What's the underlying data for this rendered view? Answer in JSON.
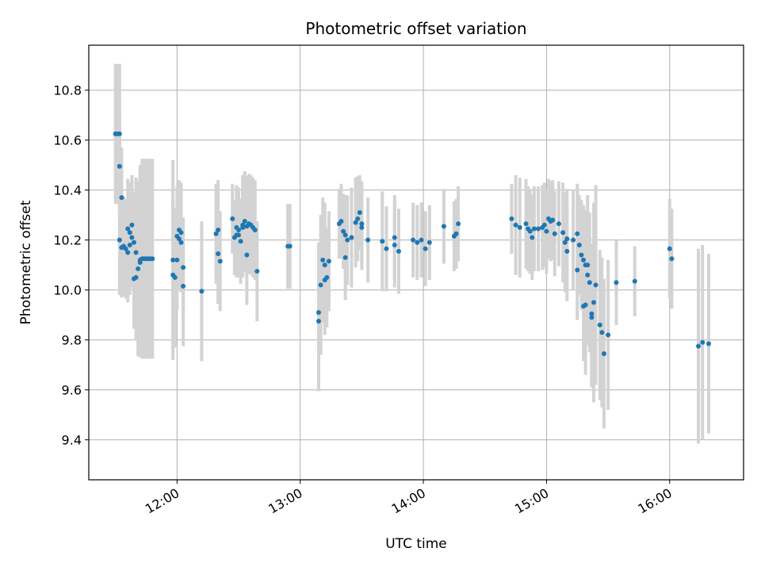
{
  "chart_data": {
    "type": "scatter",
    "title": "Photometric offset variation",
    "xlabel": "UTC time",
    "ylabel": "Photometric offset",
    "xlim": [
      "11:17",
      "16:36"
    ],
    "ylim": [
      9.24,
      10.98
    ],
    "xticks": [
      "12:00",
      "13:00",
      "14:00",
      "15:00",
      "16:00"
    ],
    "yticks": [
      9.4,
      9.6,
      9.8,
      10.0,
      10.2,
      10.4,
      10.6,
      10.8
    ],
    "grid": true,
    "colors": {
      "marker": "#1f77b4",
      "errorbar": "#d3d3d3",
      "grid": "#b0b0b0"
    },
    "points": [
      {
        "t": "11:30",
        "y": 10.625,
        "err": 0.28
      },
      {
        "t": "11:31",
        "y": 10.625,
        "err": 0.28
      },
      {
        "t": "11:32",
        "y": 10.625,
        "err": 0.28
      },
      {
        "t": "11:32",
        "y": 10.495,
        "err": 0.2
      },
      {
        "t": "11:33",
        "y": 10.37,
        "err": 0.2
      },
      {
        "t": "11:32",
        "y": 10.2,
        "err": 0.22
      },
      {
        "t": "11:33",
        "y": 10.17,
        "err": 0.2
      },
      {
        "t": "11:34",
        "y": 10.175,
        "err": 0.2
      },
      {
        "t": "11:35",
        "y": 10.165,
        "err": 0.2
      },
      {
        "t": "11:36",
        "y": 10.15,
        "err": 0.2
      },
      {
        "t": "11:36",
        "y": 10.245,
        "err": 0.2
      },
      {
        "t": "11:37",
        "y": 10.18,
        "err": 0.2
      },
      {
        "t": "11:37",
        "y": 10.23,
        "err": 0.2
      },
      {
        "t": "11:38",
        "y": 10.26,
        "err": 0.2
      },
      {
        "t": "11:38",
        "y": 10.21,
        "err": 0.2
      },
      {
        "t": "11:39",
        "y": 10.19,
        "err": 0.2
      },
      {
        "t": "11:39",
        "y": 10.045,
        "err": 0.2
      },
      {
        "t": "11:40",
        "y": 10.05,
        "err": 0.25
      },
      {
        "t": "11:40",
        "y": 10.15,
        "err": 0.3
      },
      {
        "t": "11:41",
        "y": 10.085,
        "err": 0.35
      },
      {
        "t": "11:42",
        "y": 10.11,
        "err": 0.38
      },
      {
        "t": "11:42",
        "y": 10.12,
        "err": 0.38
      },
      {
        "t": "11:43",
        "y": 10.125,
        "err": 0.4
      },
      {
        "t": "11:44",
        "y": 10.125,
        "err": 0.4
      },
      {
        "t": "11:45",
        "y": 10.125,
        "err": 0.4
      },
      {
        "t": "11:46",
        "y": 10.125,
        "err": 0.4
      },
      {
        "t": "11:47",
        "y": 10.125,
        "err": 0.4
      },
      {
        "t": "11:48",
        "y": 10.125,
        "err": 0.4
      },
      {
        "t": "11:58",
        "y": 10.12,
        "err": 0.4
      },
      {
        "t": "11:58",
        "y": 10.06,
        "err": 0.3
      },
      {
        "t": "11:59",
        "y": 10.05,
        "err": 0.28
      },
      {
        "t": "12:00",
        "y": 10.12,
        "err": 0.2
      },
      {
        "t": "12:00",
        "y": 10.215,
        "err": 0.2
      },
      {
        "t": "12:01",
        "y": 10.205,
        "err": 0.2
      },
      {
        "t": "12:01",
        "y": 10.24,
        "err": 0.2
      },
      {
        "t": "12:02",
        "y": 10.23,
        "err": 0.2
      },
      {
        "t": "12:02",
        "y": 10.19,
        "err": 0.2
      },
      {
        "t": "12:03",
        "y": 10.09,
        "err": 0.2
      },
      {
        "t": "12:03",
        "y": 10.015,
        "err": 0.24
      },
      {
        "t": "12:12",
        "y": 9.995,
        "err": 0.28
      },
      {
        "t": "12:19",
        "y": 10.225,
        "err": 0.2
      },
      {
        "t": "12:20",
        "y": 10.24,
        "err": 0.2
      },
      {
        "t": "12:20",
        "y": 10.145,
        "err": 0.2
      },
      {
        "t": "12:21",
        "y": 10.115,
        "err": 0.2
      },
      {
        "t": "12:27",
        "y": 10.285,
        "err": 0.14
      },
      {
        "t": "12:28",
        "y": 10.21,
        "err": 0.15
      },
      {
        "t": "12:29",
        "y": 10.22,
        "err": 0.17
      },
      {
        "t": "12:29",
        "y": 10.25,
        "err": 0.17
      },
      {
        "t": "12:30",
        "y": 10.24,
        "err": 0.17
      },
      {
        "t": "12:30",
        "y": 10.22,
        "err": 0.17
      },
      {
        "t": "12:31",
        "y": 10.195,
        "err": 0.17
      },
      {
        "t": "12:32",
        "y": 10.26,
        "err": 0.2
      },
      {
        "t": "12:32",
        "y": 10.25,
        "err": 0.2
      },
      {
        "t": "12:33",
        "y": 10.275,
        "err": 0.2
      },
      {
        "t": "12:34",
        "y": 10.14,
        "err": 0.2
      },
      {
        "t": "12:34",
        "y": 10.255,
        "err": 0.2
      },
      {
        "t": "12:35",
        "y": 10.265,
        "err": 0.2
      },
      {
        "t": "12:36",
        "y": 10.26,
        "err": 0.2
      },
      {
        "t": "12:37",
        "y": 10.25,
        "err": 0.2
      },
      {
        "t": "12:38",
        "y": 10.24,
        "err": 0.2
      },
      {
        "t": "12:39",
        "y": 10.075,
        "err": 0.2
      },
      {
        "t": "12:54",
        "y": 10.175,
        "err": 0.17
      },
      {
        "t": "12:55",
        "y": 10.175,
        "err": 0.17
      },
      {
        "t": "13:09",
        "y": 9.875,
        "err": 0.28
      },
      {
        "t": "13:09",
        "y": 9.91,
        "err": 0.28
      },
      {
        "t": "13:10",
        "y": 10.02,
        "err": 0.28
      },
      {
        "t": "13:11",
        "y": 10.12,
        "err": 0.25
      },
      {
        "t": "13:12",
        "y": 10.1,
        "err": 0.25
      },
      {
        "t": "13:12",
        "y": 10.04,
        "err": 0.22
      },
      {
        "t": "13:13",
        "y": 10.05,
        "err": 0.2
      },
      {
        "t": "13:14",
        "y": 10.115,
        "err": 0.2
      },
      {
        "t": "13:19",
        "y": 10.265,
        "err": 0.14
      },
      {
        "t": "13:20",
        "y": 10.275,
        "err": 0.15
      },
      {
        "t": "13:21",
        "y": 10.235,
        "err": 0.15
      },
      {
        "t": "13:22",
        "y": 10.22,
        "err": 0.16
      },
      {
        "t": "13:22",
        "y": 10.13,
        "err": 0.17
      },
      {
        "t": "13:23",
        "y": 10.2,
        "err": 0.18
      },
      {
        "t": "13:25",
        "y": 10.21,
        "err": 0.2
      },
      {
        "t": "13:27",
        "y": 10.27,
        "err": 0.18
      },
      {
        "t": "13:28",
        "y": 10.285,
        "err": 0.17
      },
      {
        "t": "13:29",
        "y": 10.31,
        "err": 0.15
      },
      {
        "t": "13:30",
        "y": 10.265,
        "err": 0.17
      },
      {
        "t": "13:30",
        "y": 10.25,
        "err": 0.17
      },
      {
        "t": "13:33",
        "y": 10.2,
        "err": 0.17
      },
      {
        "t": "13:40",
        "y": 10.195,
        "err": 0.2
      },
      {
        "t": "13:42",
        "y": 10.165,
        "err": 0.17
      },
      {
        "t": "13:46",
        "y": 10.21,
        "err": 0.17
      },
      {
        "t": "13:46",
        "y": 10.18,
        "err": 0.17
      },
      {
        "t": "13:48",
        "y": 10.155,
        "err": 0.17
      },
      {
        "t": "13:55",
        "y": 10.2,
        "err": 0.15
      },
      {
        "t": "13:57",
        "y": 10.19,
        "err": 0.15
      },
      {
        "t": "13:59",
        "y": 10.2,
        "err": 0.15
      },
      {
        "t": "14:01",
        "y": 10.165,
        "err": 0.15
      },
      {
        "t": "14:03",
        "y": 10.19,
        "err": 0.15
      },
      {
        "t": "14:10",
        "y": 10.255,
        "err": 0.15
      },
      {
        "t": "14:15",
        "y": 10.215,
        "err": 0.14
      },
      {
        "t": "14:16",
        "y": 10.225,
        "err": 0.14
      },
      {
        "t": "14:17",
        "y": 10.265,
        "err": 0.15
      },
      {
        "t": "14:43",
        "y": 10.285,
        "err": 0.14
      },
      {
        "t": "14:45",
        "y": 10.26,
        "err": 0.2
      },
      {
        "t": "14:47",
        "y": 10.25,
        "err": 0.2
      },
      {
        "t": "14:50",
        "y": 10.265,
        "err": 0.18
      },
      {
        "t": "14:51",
        "y": 10.245,
        "err": 0.17
      },
      {
        "t": "14:52",
        "y": 10.235,
        "err": 0.17
      },
      {
        "t": "14:53",
        "y": 10.21,
        "err": 0.17
      },
      {
        "t": "14:54",
        "y": 10.245,
        "err": 0.17
      },
      {
        "t": "14:56",
        "y": 10.245,
        "err": 0.17
      },
      {
        "t": "14:58",
        "y": 10.25,
        "err": 0.17
      },
      {
        "t": "14:59",
        "y": 10.26,
        "err": 0.17
      },
      {
        "t": "15:00",
        "y": 10.235,
        "err": 0.17
      },
      {
        "t": "15:01",
        "y": 10.285,
        "err": 0.16
      },
      {
        "t": "15:02",
        "y": 10.275,
        "err": 0.16
      },
      {
        "t": "15:03",
        "y": 10.28,
        "err": 0.16
      },
      {
        "t": "15:04",
        "y": 10.225,
        "err": 0.17
      },
      {
        "t": "15:06",
        "y": 10.265,
        "err": 0.17
      },
      {
        "t": "15:08",
        "y": 10.23,
        "err": 0.2
      },
      {
        "t": "15:09",
        "y": 10.19,
        "err": 0.2
      },
      {
        "t": "15:10",
        "y": 10.205,
        "err": 0.2
      },
      {
        "t": "15:10",
        "y": 10.155,
        "err": 0.2
      },
      {
        "t": "15:13",
        "y": 10.2,
        "err": 0.2
      },
      {
        "t": "15:15",
        "y": 10.225,
        "err": 0.2
      },
      {
        "t": "15:15",
        "y": 10.08,
        "err": 0.2
      },
      {
        "t": "15:16",
        "y": 10.18,
        "err": 0.2
      },
      {
        "t": "15:17",
        "y": 10.14,
        "err": 0.22
      },
      {
        "t": "15:18",
        "y": 10.12,
        "err": 0.22
      },
      {
        "t": "15:18",
        "y": 9.935,
        "err": 0.22
      },
      {
        "t": "15:19",
        "y": 10.1,
        "err": 0.22
      },
      {
        "t": "15:19",
        "y": 9.94,
        "err": 0.28
      },
      {
        "t": "15:20",
        "y": 10.06,
        "err": 0.28
      },
      {
        "t": "15:20",
        "y": 10.1,
        "err": 0.28
      },
      {
        "t": "15:21",
        "y": 10.03,
        "err": 0.28
      },
      {
        "t": "15:22",
        "y": 9.905,
        "err": 0.28
      },
      {
        "t": "15:22",
        "y": 9.89,
        "err": 0.28
      },
      {
        "t": "15:23",
        "y": 9.95,
        "err": 0.4
      },
      {
        "t": "15:24",
        "y": 10.02,
        "err": 0.4
      },
      {
        "t": "15:26",
        "y": 9.86,
        "err": 0.3
      },
      {
        "t": "15:27",
        "y": 9.83,
        "err": 0.3
      },
      {
        "t": "15:28",
        "y": 9.745,
        "err": 0.3
      },
      {
        "t": "15:30",
        "y": 9.82,
        "err": 0.3
      },
      {
        "t": "15:34",
        "y": 10.03,
        "err": 0.17
      },
      {
        "t": "15:43",
        "y": 10.035,
        "err": 0.14
      },
      {
        "t": "16:00",
        "y": 10.165,
        "err": 0.2
      },
      {
        "t": "16:01",
        "y": 10.125,
        "err": 0.2
      },
      {
        "t": "16:14",
        "y": 9.775,
        "err": 0.39
      },
      {
        "t": "16:16",
        "y": 9.79,
        "err": 0.39
      },
      {
        "t": "16:19",
        "y": 9.785,
        "err": 0.36
      }
    ]
  }
}
